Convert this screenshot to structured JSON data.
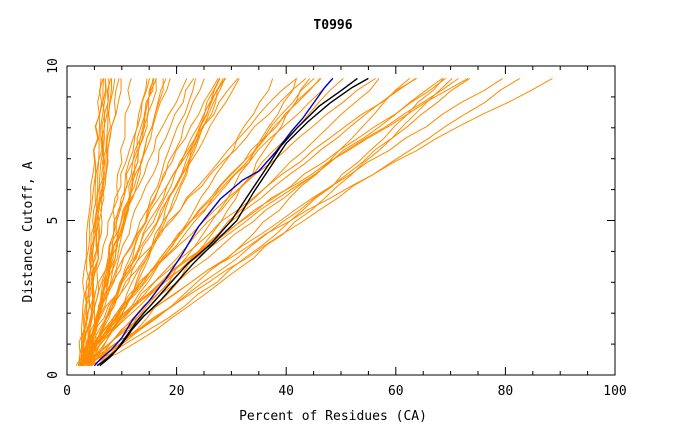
{
  "chart_data": {
    "type": "line",
    "title": "T0996",
    "xlabel": "Percent of Residues (CA)",
    "ylabel": "Distance Cutoff, A",
    "xlim": [
      0,
      100
    ],
    "ylim": [
      0,
      10
    ],
    "xticks": [
      0,
      20,
      40,
      60,
      80,
      100
    ],
    "yticks": [
      0,
      5,
      10
    ],
    "grid": false,
    "colors": {
      "orange": "#ff8c00",
      "black": "#000000",
      "blue": "#0000c8",
      "axis": "#000000"
    },
    "series": [
      {
        "name": "highlight-blue",
        "color": "#0000c8",
        "x": [
          5,
          6,
          8,
          10,
          12,
          15,
          18,
          21,
          24,
          28,
          32,
          35,
          38,
          41,
          43,
          45,
          47,
          48.5
        ],
        "y": [
          0.3,
          0.5,
          0.8,
          1.2,
          1.8,
          2.4,
          3.1,
          3.9,
          4.8,
          5.7,
          6.3,
          6.6,
          7.2,
          7.9,
          8.3,
          8.8,
          9.3,
          9.6
        ]
      },
      {
        "name": "highlight-black-1",
        "color": "#000000",
        "x": [
          5.5,
          7,
          9,
          11,
          13,
          16,
          19,
          22,
          26,
          30,
          33,
          36,
          39,
          42,
          46,
          50,
          53
        ],
        "y": [
          0.3,
          0.5,
          0.8,
          1.3,
          1.8,
          2.4,
          3.0,
          3.6,
          4.2,
          5.0,
          5.8,
          6.6,
          7.4,
          8.0,
          8.7,
          9.2,
          9.6
        ]
      },
      {
        "name": "highlight-black-2",
        "color": "#000000",
        "x": [
          6,
          8,
          10,
          12,
          14,
          17,
          20,
          23,
          27,
          31,
          34,
          37,
          40,
          44,
          48,
          52,
          55
        ],
        "y": [
          0.3,
          0.6,
          1.0,
          1.5,
          1.9,
          2.4,
          3.0,
          3.6,
          4.3,
          5.0,
          5.9,
          6.7,
          7.5,
          8.2,
          8.8,
          9.3,
          9.6
        ]
      }
    ],
    "ensemble": {
      "name": "orange-models",
      "color": "#ff8c00",
      "count": 60,
      "start_x": [
        2,
        4.5
      ],
      "end_x_at_9_6": [
        6,
        90
      ],
      "ymin": 0.3,
      "ymax": 9.6
    }
  }
}
